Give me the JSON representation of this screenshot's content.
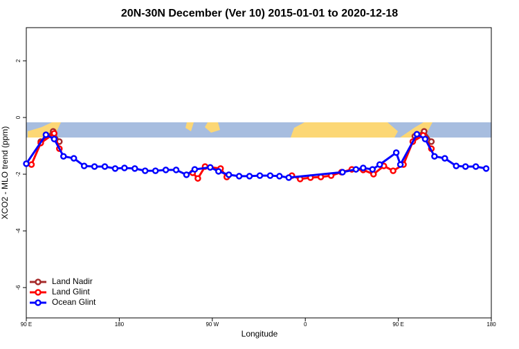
{
  "chart_data": {
    "type": "line",
    "title": "20N-30N December (Ver 10)   2015-01-01 to 2020-12-18",
    "xlabel": "Longitude",
    "ylabel": "XCO2 - MLO trend (ppm)",
    "xlim": [
      90,
      540
    ],
    "ylim": [
      -7.07,
      3.17
    ],
    "xticks": [
      {
        "value": 90,
        "label": "90 E"
      },
      180,
      {
        "value": 270,
        "label": "90 W"
      },
      {
        "value": 360,
        "label": "0"
      },
      {
        "value": 450,
        "label": "90 E"
      },
      {
        "value": 540,
        "label": "180"
      }
    ],
    "yticks": [
      -6,
      -4,
      -2,
      0,
      2
    ],
    "legend": "bottom-left",
    "series": [
      {
        "name": "Land Nadir",
        "color": "#a52a2a",
        "x": [
          104,
          116,
          122,
          300,
          466,
          475,
          482
        ],
        "values": [
          -0.85,
          -0.49,
          -0.85,
          null,
          -0.66,
          -0.49,
          -0.85
        ]
      },
      {
        "name": "Land Glint",
        "color": "#ff0000",
        "x": [
          95,
          104,
          117,
          122,
          180,
          251,
          256,
          263,
          278,
          284,
          320,
          347,
          355,
          365,
          375,
          385,
          395,
          405,
          416,
          426,
          436,
          445,
          455,
          464,
          474,
          482
        ],
        "values": [
          -1.66,
          -0.9,
          -0.56,
          -1.1,
          null,
          -1.95,
          -2.15,
          -1.73,
          -1.8,
          -2.1,
          null,
          -2.05,
          -2.17,
          -2.12,
          -2.1,
          -2.05,
          -1.93,
          -1.83,
          -1.85,
          -2.0,
          -1.71,
          -1.88,
          -1.66,
          -0.85,
          -0.63,
          -1.1
        ]
      },
      {
        "name": "Ocean Glint",
        "color": "#0000ff",
        "x": [
          90,
          109,
          117,
          126,
          136,
          146,
          156,
          166,
          176,
          185,
          195,
          205,
          215,
          225,
          235,
          245,
          253,
          268,
          276,
          286,
          296,
          306,
          316,
          326,
          335,
          344,
          396,
          409,
          416,
          425,
          432,
          448,
          452,
          468,
          476,
          485,
          495,
          506,
          515,
          525,
          535
        ],
        "values": [
          -1.63,
          -0.61,
          -0.76,
          -1.37,
          -1.44,
          -1.71,
          -1.73,
          -1.73,
          -1.8,
          -1.78,
          -1.8,
          -1.88,
          -1.88,
          -1.85,
          -1.85,
          -2.02,
          -1.83,
          -1.76,
          -1.9,
          -2.02,
          -2.07,
          -2.07,
          -2.05,
          -2.05,
          -2.07,
          -2.12,
          -1.93,
          -1.83,
          -1.78,
          -1.83,
          -1.66,
          -1.24,
          -1.66,
          -0.59,
          -0.76,
          -1.37,
          -1.44,
          -1.71,
          -1.73,
          -1.73,
          -1.8
        ]
      }
    ]
  }
}
